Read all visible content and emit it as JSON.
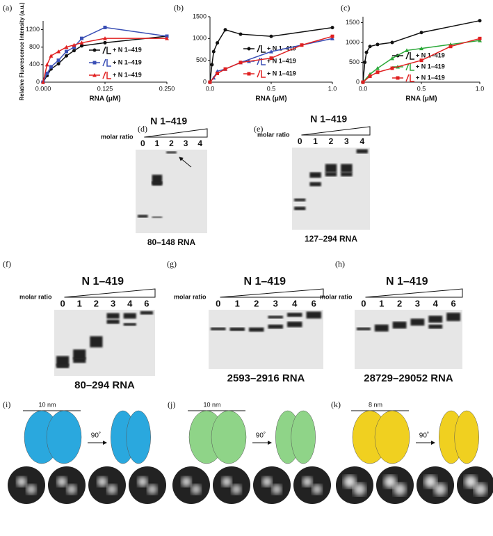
{
  "chart_data": [
    {
      "type": "line",
      "panel_label": "(a)",
      "y_label": "Relative Fluorescence Intensity (a.u.)",
      "x_label": "RNA (μM)",
      "xlim": [
        0,
        0.25
      ],
      "ylim": [
        0,
        1400
      ],
      "xticks": [
        {
          "value": 0,
          "label": "0.000"
        },
        0.125,
        {
          "value": 0.25,
          "label": "0.250"
        }
      ],
      "yticks": [
        0,
        400,
        800,
        1200
      ],
      "series": [
        {
          "name": "+ N 1–419",
          "color": "#111111",
          "marker": "circle",
          "x": [
            0,
            0.008,
            0.016,
            0.031,
            0.047,
            0.0625,
            0.078,
            0.125,
            0.25
          ],
          "values": [
            0,
            150,
            300,
            420,
            600,
            720,
            830,
            900,
            1050
          ]
        },
        {
          "name": "+ N 1–419",
          "color": "#3a4fb5",
          "marker": "square",
          "x": [
            0,
            0.008,
            0.016,
            0.031,
            0.047,
            0.0625,
            0.078,
            0.125,
            0.25
          ],
          "values": [
            0,
            200,
            350,
            500,
            700,
            800,
            1000,
            1250,
            1050
          ]
        },
        {
          "name": "+ N 1–419",
          "color": "#e02020",
          "marker": "triangle",
          "x": [
            0,
            0.008,
            0.016,
            0.031,
            0.047,
            0.0625,
            0.078,
            0.125,
            0.25
          ],
          "values": [
            0,
            400,
            600,
            700,
            800,
            850,
            900,
            1000,
            1000
          ]
        }
      ]
    },
    {
      "type": "line",
      "panel_label": "(b)",
      "x_label": "RNA (μM)",
      "xlim": [
        0,
        1
      ],
      "ylim": [
        0,
        1500
      ],
      "xticks": [
        {
          "value": 0,
          "label": "0.0"
        },
        0.5,
        {
          "value": 1,
          "label": "1.0"
        }
      ],
      "yticks": [
        0,
        500,
        1000,
        1500
      ],
      "series": [
        {
          "name": "+ N 1–419",
          "color": "#111111",
          "marker": "circle",
          "x": [
            0,
            0.016,
            0.03,
            0.06,
            0.125,
            0.25,
            0.5,
            1
          ],
          "values": [
            0,
            400,
            700,
            900,
            1200,
            1100,
            1050,
            1250
          ]
        },
        {
          "name": "+ N 1–419",
          "color": "#3a4fb5",
          "marker": "triangle",
          "x": [
            0,
            0.03,
            0.06,
            0.125,
            0.25,
            0.5,
            1
          ],
          "values": [
            0,
            100,
            250,
            300,
            450,
            700,
            1000
          ]
        },
        {
          "name": "+ N 1–419",
          "color": "#e02020",
          "marker": "square",
          "x": [
            0,
            0.06,
            0.125,
            0.25,
            0.5,
            0.75,
            1
          ],
          "values": [
            0,
            200,
            300,
            450,
            550,
            850,
            1050
          ]
        }
      ]
    },
    {
      "type": "line",
      "panel_label": "(c)",
      "x_label": "RNA (μM)",
      "xlim": [
        0,
        1
      ],
      "ylim": [
        0,
        1650
      ],
      "xticks": [
        {
          "value": 0,
          "label": "0.0"
        },
        0.5,
        {
          "value": 1,
          "label": "1.0"
        }
      ],
      "yticks": [
        0,
        500,
        1000,
        1500
      ],
      "series": [
        {
          "name": "+ N 1–419",
          "color": "#111111",
          "marker": "circle",
          "x": [
            0,
            0.016,
            0.03,
            0.06,
            0.125,
            0.25,
            0.5,
            1
          ],
          "values": [
            0,
            500,
            750,
            900,
            950,
            1000,
            1250,
            1550
          ]
        },
        {
          "name": "+ N 1–419",
          "color": "#2aa838",
          "marker": "triangle",
          "x": [
            0,
            0.06,
            0.125,
            0.25,
            0.375,
            0.5,
            0.75,
            1
          ],
          "values": [
            0,
            200,
            350,
            600,
            800,
            850,
            950,
            1050
          ]
        },
        {
          "name": "+ N 1–419",
          "color": "#e02020",
          "marker": "square",
          "x": [
            0,
            0.06,
            0.125,
            0.25,
            0.5,
            0.75,
            1
          ],
          "values": [
            0,
            150,
            250,
            350,
            550,
            900,
            1100
          ]
        }
      ]
    }
  ],
  "gels": [
    {
      "panel_label": "(d)",
      "title": "N 1–419",
      "ratio_label": "molar ratio",
      "lanes": [
        "0",
        "1",
        "2",
        "3",
        "4"
      ],
      "caption": "80–148 RNA"
    },
    {
      "panel_label": "(e)",
      "title": "N 1–419",
      "ratio_label": "molar ratio",
      "lanes": [
        "0",
        "1",
        "2",
        "3",
        "4"
      ],
      "caption": "127–294 RNA"
    },
    {
      "panel_label": "(f)",
      "title": "N 1–419",
      "ratio_label": "molar ratio",
      "lanes": [
        "0",
        "1",
        "2",
        "3",
        "4",
        "6"
      ],
      "caption": "80–294 RNA"
    },
    {
      "panel_label": "(g)",
      "title": "N 1–419",
      "ratio_label": "molar ratio",
      "lanes": [
        "0",
        "1",
        "2",
        "3",
        "4",
        "6"
      ],
      "caption": "2593–2916 RNA"
    },
    {
      "panel_label": "(h)",
      "title": "N 1–419",
      "ratio_label": "molar ratio",
      "lanes": [
        "0",
        "1",
        "2",
        "3",
        "4",
        "6"
      ],
      "caption": "28729–29052 RNA"
    }
  ],
  "maps": [
    {
      "panel_label": "(i)",
      "scale": "10 nm",
      "rotation": "90˚",
      "color": "#2aa8de"
    },
    {
      "panel_label": "(j)",
      "scale": "10 nm",
      "rotation": "90˚",
      "color": "#8fd488"
    },
    {
      "panel_label": "(k)",
      "scale": "8 nm",
      "rotation": "90˚",
      "color": "#f0d020"
    }
  ]
}
